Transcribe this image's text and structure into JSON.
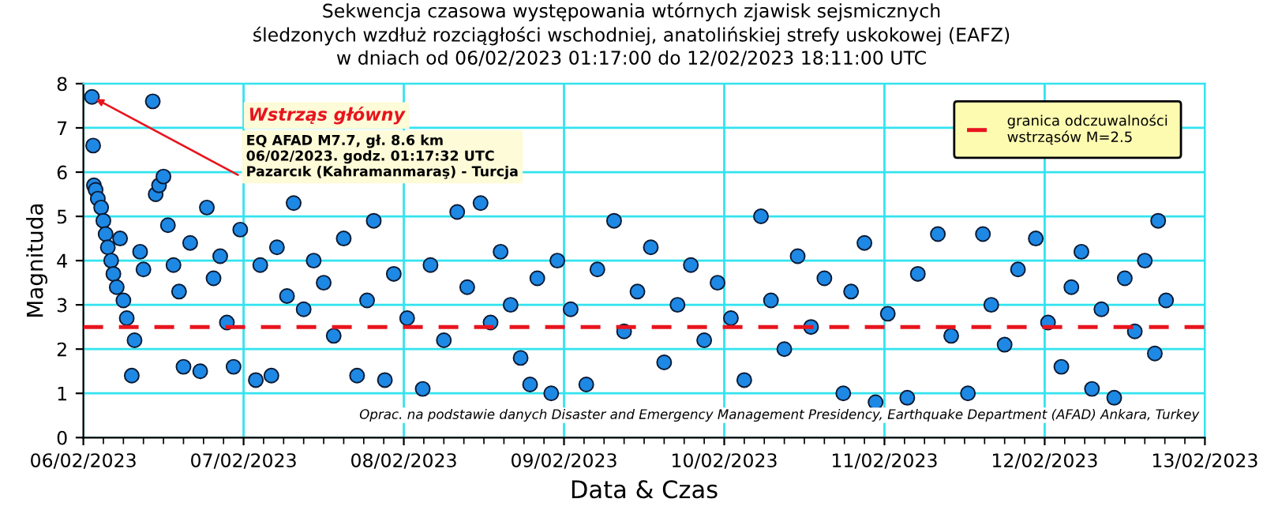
{
  "chart_data": {
    "type": "scatter",
    "title": "Sekwencja czasowa występowania wtórnych zjawisk sejsmicznych\nśledzonych wzdłuż rozciągłości wschodniej, anatolińskiej strefy uskokowej (EAFZ)\nw dniach od 06/02/2023 01:17:00 do 12/02/2023 18:11:00 UTC",
    "xlabel": "Data & Czas",
    "ylabel": "Magnituda",
    "xlim": [
      "2023-02-06",
      "2023-02-13"
    ],
    "ylim": [
      0,
      8
    ],
    "xticks": [
      {
        "value": "2023-02-06",
        "label": "06/02/2023"
      },
      {
        "value": "2023-02-07",
        "label": "07/02/2023"
      },
      {
        "value": "2023-02-08",
        "label": "08/02/2023"
      },
      {
        "value": "2023-02-09",
        "label": "09/02/2023"
      },
      {
        "value": "2023-02-10",
        "label": "10/02/2023"
      },
      {
        "value": "2023-02-11",
        "label": "11/02/2023"
      },
      {
        "value": "2023-02-12",
        "label": "12/02/2023"
      },
      {
        "value": "2023-02-13",
        "label": "13/02/2023"
      }
    ],
    "yticks": [
      0,
      1,
      2,
      3,
      4,
      5,
      6,
      7,
      8
    ],
    "grid": true,
    "marker": "circle",
    "legend": "top right",
    "ref_lines": [
      {
        "axis": "y",
        "value": 2.5,
        "label": "granica odczuwalności\nwstrząsów M=2.5",
        "color": "#e8141e",
        "line_style": "dashed"
      }
    ],
    "annotations": [
      "Wstrząs główny",
      {
        "text": "EQ AFAD M7.7, gł. 8.6 km\n06/02/2023. godz. 01:17:32 UTC\nPazarcık (Kahramanmaraş) - Turcja",
        "x": "2023-02-06T01:17",
        "y": 7.7
      },
      "Oprac. na podstawie danych Disaster and Emergency Management Presidency, Earthquake Department (AFAD) Ankara, Turkey"
    ],
    "series": [
      {
        "color": "#1e88e5",
        "x": [
          "2023-02-06T01:17",
          "2023-02-06T01:28",
          "2023-02-06T01:35",
          "2023-02-06T01:50",
          "2023-02-06T02:10",
          "2023-02-06T02:40",
          "2023-02-06T03:00",
          "2023-02-06T03:20",
          "2023-02-06T03:40",
          "2023-02-06T04:10",
          "2023-02-06T04:30",
          "2023-02-06T05:00",
          "2023-02-06T05:30",
          "2023-02-06T06:00",
          "2023-02-06T06:30",
          "2023-02-06T07:15",
          "2023-02-06T07:40",
          "2023-02-06T08:30",
          "2023-02-06T09:00",
          "2023-02-06T10:24",
          "2023-02-06T10:50",
          "2023-02-06T11:20",
          "2023-02-06T12:00",
          "2023-02-06T12:40",
          "2023-02-06T13:30",
          "2023-02-06T14:20",
          "2023-02-06T15:00",
          "2023-02-06T16:00",
          "2023-02-06T17:30",
          "2023-02-06T18:30",
          "2023-02-06T19:30",
          "2023-02-06T20:30",
          "2023-02-06T21:30",
          "2023-02-06T22:30",
          "2023-02-06T23:30",
          "2023-02-07T01:50",
          "2023-02-07T02:30",
          "2023-02-07T04:10",
          "2023-02-07T05:00",
          "2023-02-07T06:30",
          "2023-02-07T07:30",
          "2023-02-07T09:00",
          "2023-02-07T10:30",
          "2023-02-07T12:00",
          "2023-02-07T13:30",
          "2023-02-07T15:00",
          "2023-02-07T17:00",
          "2023-02-07T18:30",
          "2023-02-07T19:30",
          "2023-02-07T21:10",
          "2023-02-07T22:30",
          "2023-02-08T00:30",
          "2023-02-08T02:50",
          "2023-02-08T04:00",
          "2023-02-08T06:00",
          "2023-02-08T08:00",
          "2023-02-08T09:30",
          "2023-02-08T11:30",
          "2023-02-08T13:00",
          "2023-02-08T14:30",
          "2023-02-08T16:00",
          "2023-02-08T17:30",
          "2023-02-08T18:55",
          "2023-02-08T20:00",
          "2023-02-08T22:05",
          "2023-02-08T23:00",
          "2023-02-09T01:00",
          "2023-02-09T03:20",
          "2023-02-09T05:00",
          "2023-02-09T07:30",
          "2023-02-09T09:00",
          "2023-02-09T11:00",
          "2023-02-09T13:00",
          "2023-02-09T15:00",
          "2023-02-09T17:00",
          "2023-02-09T19:00",
          "2023-02-09T21:00",
          "2023-02-09T23:00",
          "2023-02-10T01:00",
          "2023-02-10T03:00",
          "2023-02-10T05:30",
          "2023-02-10T07:00",
          "2023-02-10T09:00",
          "2023-02-10T11:00",
          "2023-02-10T13:00",
          "2023-02-10T15:00",
          "2023-02-10T17:50",
          "2023-02-10T19:00",
          "2023-02-10T21:00",
          "2023-02-10T22:40",
          "2023-02-11T00:30",
          "2023-02-11T03:25",
          "2023-02-11T05:00",
          "2023-02-11T08:00",
          "2023-02-11T10:00",
          "2023-02-11T12:30",
          "2023-02-11T14:45",
          "2023-02-11T16:00",
          "2023-02-11T18:00",
          "2023-02-11T20:00",
          "2023-02-11T22:40",
          "2023-02-12T00:30",
          "2023-02-12T02:30",
          "2023-02-12T04:00",
          "2023-02-12T05:30",
          "2023-02-12T07:05",
          "2023-02-12T08:30",
          "2023-02-12T10:25",
          "2023-02-12T12:00",
          "2023-02-12T13:30",
          "2023-02-12T15:00",
          "2023-02-12T16:30",
          "2023-02-12T17:00",
          "2023-02-12T18:11"
        ],
        "values": [
          7.7,
          6.6,
          5.7,
          5.6,
          5.4,
          5.2,
          4.9,
          4.6,
          4.3,
          4.0,
          3.7,
          3.4,
          4.5,
          3.1,
          2.7,
          1.4,
          2.2,
          4.2,
          3.8,
          7.6,
          5.5,
          5.7,
          5.9,
          4.8,
          3.9,
          3.3,
          1.6,
          4.4,
          1.5,
          5.2,
          3.6,
          4.1,
          2.6,
          1.6,
          4.7,
          1.3,
          3.9,
          1.4,
          4.3,
          3.2,
          5.3,
          2.9,
          4.0,
          3.5,
          2.3,
          4.5,
          1.4,
          3.1,
          4.9,
          1.3,
          3.7,
          2.7,
          1.1,
          3.9,
          2.2,
          5.1,
          3.4,
          5.3,
          2.6,
          4.2,
          3.0,
          1.8,
          1.2,
          3.6,
          1.0,
          4.0,
          2.9,
          1.2,
          3.8,
          4.9,
          2.4,
          3.3,
          4.3,
          1.7,
          3.0,
          3.9,
          2.2,
          3.5,
          2.7,
          1.3,
          5.0,
          3.1,
          2.0,
          4.1,
          2.5,
          3.6,
          1.0,
          3.3,
          4.4,
          0.8,
          2.8,
          0.9,
          3.7,
          4.6,
          2.3,
          1.0,
          4.6,
          3.0,
          2.1,
          3.8,
          4.5,
          2.6,
          1.6,
          3.4,
          4.2,
          1.1,
          2.9,
          0.9,
          3.6,
          2.4,
          4.0,
          1.9,
          4.9,
          3.1
        ]
      }
    ]
  }
}
